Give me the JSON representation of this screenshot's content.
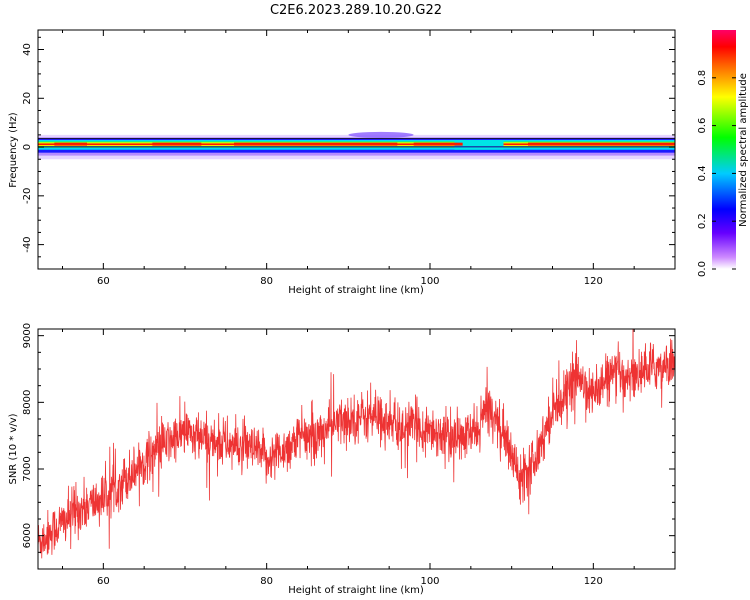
{
  "title": "C2E6.2023.289.10.20.G22",
  "colors": {
    "snr_line": "#ee3333",
    "band_core": "#ff1a00",
    "band_outline": "#000000"
  },
  "chart_data": [
    {
      "type": "heatmap",
      "title": "",
      "xlabel": "Height of straight line (km)",
      "ylabel": "Frequency (Hz)",
      "xlim": [
        52,
        130
      ],
      "ylim": [
        -50,
        48
      ],
      "xticks": [
        60,
        80,
        100,
        120
      ],
      "yticks": [
        40,
        20,
        0,
        -20,
        -40
      ],
      "colorbar": {
        "label": "Normalized spectral amplitude",
        "range": [
          0.0,
          1.0
        ],
        "ticks": [
          0.0,
          0.2,
          0.4,
          0.6,
          0.8
        ],
        "tick_labels": [
          "0.0",
          "0.2",
          "0.4",
          "0.6",
          "0.8"
        ],
        "colormap": "rainbow (white-violet-blue-cyan-green-yellow-red-magenta)"
      },
      "band": {
        "center_frequency_hz": 1,
        "half_width_hz": 2.5,
        "features": [
          {
            "x": 94,
            "description": "broadened upper fringe to ~+5 Hz"
          },
          {
            "x": 105,
            "description": "cyan/green weaker region"
          }
        ]
      },
      "grid": false
    },
    {
      "type": "line",
      "title": "",
      "xlabel": "Height of straight line (km)",
      "ylabel": "SNR (10 * v/v)",
      "xlim": [
        52,
        130
      ],
      "ylim": [
        5500,
        9100
      ],
      "xticks": [
        60,
        80,
        100,
        120
      ],
      "yticks": [
        9000,
        8000,
        7000,
        6000
      ],
      "series": [
        {
          "x": [
            52,
            54,
            56,
            58,
            60,
            62,
            64,
            66,
            68,
            70,
            72,
            74,
            76,
            78,
            80,
            82,
            84,
            86,
            88,
            90,
            92,
            94,
            96,
            98,
            100,
            102,
            104,
            106,
            107,
            108,
            110,
            111,
            113,
            115,
            117,
            118,
            120,
            122,
            124,
            126,
            128,
            130
          ],
          "y": [
            5900,
            6100,
            6300,
            6450,
            6550,
            6800,
            7000,
            7250,
            7400,
            7550,
            7450,
            7400,
            7350,
            7300,
            7150,
            7300,
            7450,
            7500,
            7650,
            7750,
            7800,
            7750,
            7600,
            7650,
            7600,
            7500,
            7450,
            7600,
            7950,
            7800,
            7200,
            6900,
            7200,
            7900,
            8200,
            8400,
            8100,
            8400,
            8400,
            8450,
            8550,
            8600
          ],
          "noise_amplitude": 180
        }
      ],
      "grid": false
    }
  ]
}
